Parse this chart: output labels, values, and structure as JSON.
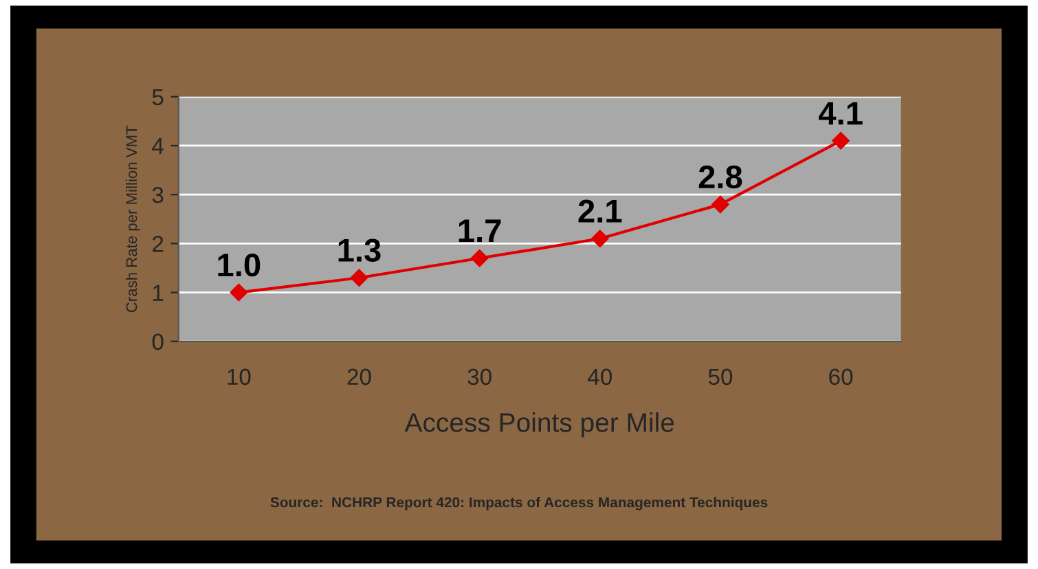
{
  "chart_data": {
    "type": "line",
    "xlabel": "Access Points per Mile",
    "ylabel": "Crash Rate per Million VMT",
    "categories": [
      "10",
      "20",
      "30",
      "40",
      "50",
      "60"
    ],
    "series": [
      {
        "color": "#e00000",
        "values": [
          1.0,
          1.3,
          1.7,
          2.1,
          2.8,
          4.1
        ],
        "value_labels": [
          "1.0",
          "1.3",
          "1.7",
          "2.1",
          "2.8",
          "4.1"
        ]
      }
    ],
    "ylim": [
      0,
      5
    ],
    "yticks": [
      0,
      1,
      2,
      3,
      4,
      5
    ],
    "grid": "y",
    "marker": "diamond",
    "line_style": "solid",
    "annotations": [
      "Source:  NCHRP Report 420: Impacts of Access Management Techniques"
    ]
  }
}
